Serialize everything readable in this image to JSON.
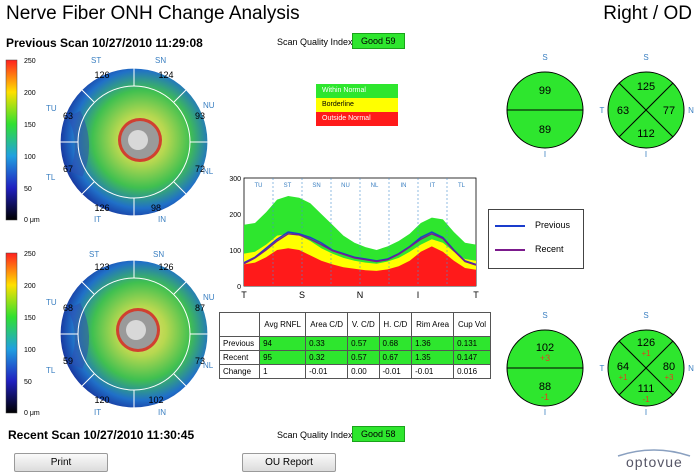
{
  "header": {
    "title": "Nerve Fiber ONH Change Analysis",
    "eye": "Right / OD"
  },
  "previous_scan": {
    "label": "Previous Scan 10/27/2010 11:29:08",
    "sqi_label": "Scan Quality Index",
    "sqi_value": "Good  59"
  },
  "recent_scan": {
    "label": "Recent Scan 10/27/2010 11:30:45",
    "sqi_label": "Scan Quality Index",
    "sqi_value": "Good  58"
  },
  "colorbar": {
    "ticks": [
      "250",
      "200",
      "150",
      "100",
      "50",
      "0 μm"
    ]
  },
  "onh_labels": [
    "ST",
    "SN",
    "NU",
    "NL",
    "IN",
    "IT",
    "TL",
    "TU"
  ],
  "onh_previous": {
    "ST": "126",
    "SN": "124",
    "NU": "93",
    "NL": "72",
    "IN": "98",
    "IT": "126",
    "TL": "67",
    "TU": "63"
  },
  "onh_recent": {
    "ST": "123",
    "SN": "126",
    "NU": "87",
    "NL": "73",
    "IN": "102",
    "IT": "120",
    "TL": "59",
    "TU": "68"
  },
  "norm_legend": {
    "within": "Within Normal",
    "borderline": "Borderline",
    "outside": "Outside Normal"
  },
  "tsnit": {
    "sector_labels": [
      "TU",
      "ST",
      "SN",
      "NU",
      "NL",
      "IN",
      "IT",
      "TL"
    ],
    "x_labels": [
      "T",
      "S",
      "N",
      "I",
      "T"
    ],
    "y_ticks": [
      "300",
      "200",
      "100",
      "0"
    ],
    "ymax": 300,
    "green": [
      170,
      175,
      205,
      240,
      250,
      245,
      230,
      200,
      170,
      140,
      120,
      108,
      100,
      110,
      125,
      145,
      175,
      190,
      185,
      150,
      120,
      115
    ],
    "yellow": [
      90,
      95,
      115,
      140,
      145,
      140,
      125,
      105,
      90,
      78,
      70,
      65,
      62,
      68,
      78,
      95,
      115,
      130,
      120,
      95,
      75,
      70
    ],
    "red": [
      60,
      65,
      80,
      100,
      105,
      100,
      85,
      70,
      60,
      52,
      48,
      44,
      42,
      46,
      55,
      70,
      95,
      110,
      95,
      70,
      50,
      45
    ],
    "previous": [
      65,
      80,
      105,
      130,
      150,
      145,
      135,
      120,
      100,
      90,
      80,
      75,
      70,
      75,
      90,
      110,
      135,
      150,
      135,
      100,
      70,
      60
    ],
    "recent": [
      62,
      78,
      100,
      125,
      145,
      142,
      130,
      115,
      98,
      88,
      78,
      73,
      68,
      73,
      88,
      108,
      130,
      145,
      132,
      98,
      68,
      58
    ]
  },
  "series_legend": {
    "previous": "Previous",
    "recent": "Recent",
    "previous_color": "#1a3ccc",
    "recent_color": "#7b1a8c"
  },
  "table": {
    "headers": [
      "",
      "Avg RNFL",
      "Area C/D",
      "V. C/D",
      "H. C/D",
      "Rim Area",
      "Cup Vol"
    ],
    "rows": [
      [
        "Previous",
        "94",
        "0.33",
        "0.57",
        "0.68",
        "1.36",
        "0.131"
      ],
      [
        "Recent",
        "95",
        "0.32",
        "0.57",
        "0.67",
        "1.35",
        "0.147"
      ],
      [
        "Change",
        "1",
        "-0.01",
        "0.00",
        "-0.01",
        "-0.01",
        "0.016"
      ]
    ]
  },
  "half_prev": {
    "top": "99",
    "bottom": "89",
    "s": "S",
    "i": "I"
  },
  "quad_prev": {
    "top": "125",
    "left": "63",
    "right": "77",
    "bottom": "112",
    "s": "S",
    "i": "I",
    "t": "T",
    "n": "N"
  },
  "half_recent": {
    "top": "102",
    "top_delta": "+3",
    "bottom": "88",
    "bottom_delta": "-1",
    "s": "S",
    "i": "I"
  },
  "quad_recent": {
    "top": "126",
    "top_delta": "+1",
    "left": "64",
    "left_delta": "+1",
    "right": "80",
    "right_delta": "+3",
    "bottom": "111",
    "bottom_delta": "-1",
    "s": "S",
    "i": "I",
    "t": "T",
    "n": "N"
  },
  "buttons": {
    "print": "Print",
    "ou_report": "OU Report"
  },
  "brand": "optovue"
}
